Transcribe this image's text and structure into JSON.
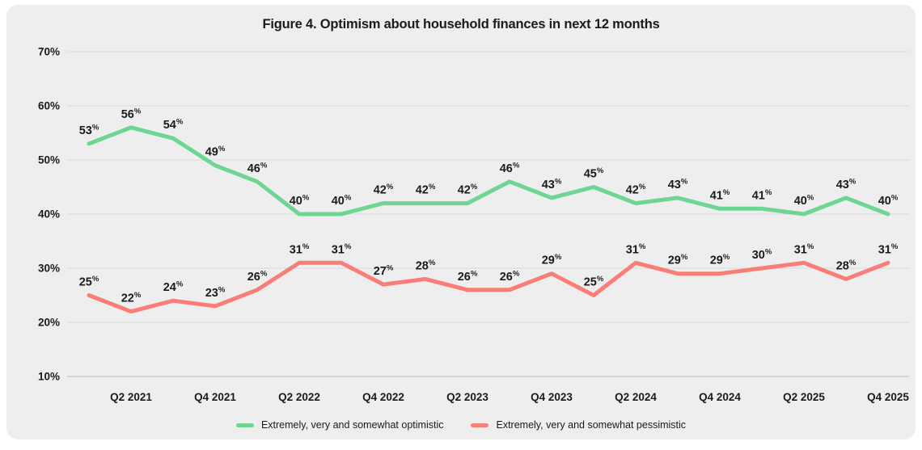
{
  "title": "Figure 4. Optimism about household finances in next 12 months",
  "colors": {
    "card_background": "#eeeeee",
    "gridline": "#d9d9d9",
    "axis_line": "#bdbdbd",
    "text": "#1b1b1b",
    "optimistic_green": "#6fd592",
    "pessimistic_red": "#f97e78"
  },
  "chart_data": {
    "type": "line",
    "title": "Figure 4. Optimism about household finances in next 12 months",
    "n_points": 20,
    "x_tick_labels": [
      "Q2 2021",
      "Q4 2021",
      "Q2 2022",
      "Q4 2022",
      "Q2 2023",
      "Q4 2023",
      "Q2 2024",
      "Q4 2024",
      "Q2 2025",
      "Q4 2025"
    ],
    "x_tick_positions": [
      1,
      3,
      5,
      7,
      9,
      11,
      13,
      15,
      17,
      19
    ],
    "y_tick_labels": [
      "70%",
      "60%",
      "50%",
      "40%",
      "30%",
      "20%",
      "10%"
    ],
    "y_tick_values": [
      70,
      60,
      50,
      40,
      30,
      20,
      10
    ],
    "ylim": [
      10,
      70
    ],
    "grid": true,
    "legend_position": "bottom-center",
    "value_label_suffix": "%",
    "series": [
      {
        "name": "Extremely, very and somewhat optimistic",
        "color": "#6fd592",
        "values": [
          53,
          56,
          54,
          49,
          46,
          40,
          40,
          42,
          42,
          42,
          46,
          43,
          45,
          42,
          43,
          41,
          41,
          40,
          43,
          40
        ]
      },
      {
        "name": "Extremely, very and somewhat pessimistic",
        "color": "#f97e78",
        "values": [
          25,
          22,
          24,
          23,
          26,
          31,
          31,
          27,
          28,
          26,
          26,
          29,
          25,
          31,
          29,
          29,
          30,
          31,
          28,
          31
        ]
      }
    ]
  }
}
